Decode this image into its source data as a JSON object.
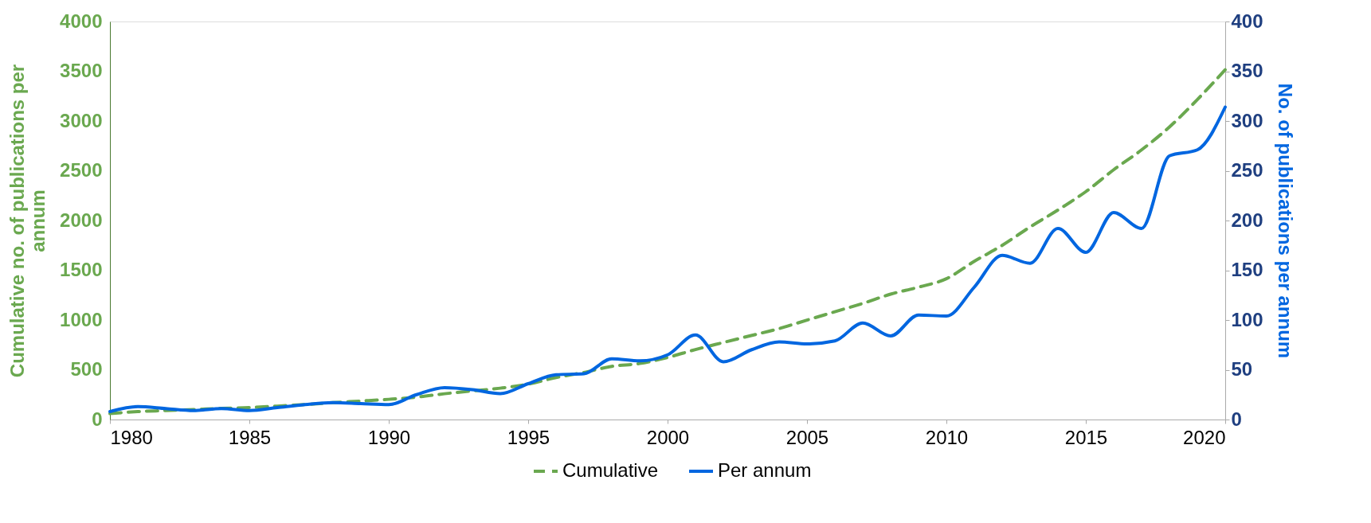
{
  "chart_data": {
    "type": "line",
    "x": [
      1980,
      1981,
      1982,
      1983,
      1984,
      1985,
      1986,
      1987,
      1988,
      1989,
      1990,
      1991,
      1992,
      1993,
      1994,
      1995,
      1996,
      1997,
      1998,
      1999,
      2000,
      2001,
      2002,
      2003,
      2004,
      2005,
      2006,
      2007,
      2008,
      2009,
      2010,
      2011,
      2012,
      2013,
      2014,
      2015,
      2016,
      2017,
      2018,
      2019,
      2020
    ],
    "series": [
      {
        "name": "Cumulative",
        "color": "#6aa84f",
        "line_style": "dashed",
        "axis": "y",
        "values": [
          60,
          80,
          90,
          100,
          112,
          120,
          135,
          150,
          170,
          186,
          203,
          225,
          259,
          287,
          315,
          355,
          422,
          473,
          534,
          563,
          624,
          703,
          774,
          844,
          914,
          999,
          1083,
          1167,
          1260,
          1330,
          1415,
          1590,
          1750,
          1935,
          2105,
          2290,
          2510,
          2710,
          2940,
          3215,
          3515
        ]
      },
      {
        "name": "Per annum",
        "color": "#0066e0",
        "line_style": "solid",
        "axis": "y2",
        "values": [
          8,
          13,
          11,
          9,
          11,
          9,
          12,
          15,
          17,
          16,
          15,
          25,
          32,
          30,
          26,
          36,
          45,
          46,
          61,
          59,
          65,
          85,
          58,
          70,
          78,
          76,
          79,
          97,
          84,
          105,
          104,
          133,
          165,
          157,
          192,
          168,
          208,
          192,
          265,
          271,
          314
        ]
      }
    ],
    "xlim": [
      1980,
      2020
    ],
    "xticks": [
      1980,
      1985,
      1990,
      1995,
      2000,
      2005,
      2010,
      2015,
      2020
    ],
    "ylabel": "Cumulative no. of publications per annum",
    "ylim": [
      0,
      4000
    ],
    "yticks": [
      0,
      500,
      1000,
      1500,
      2000,
      2500,
      3000,
      3500,
      4000
    ],
    "y2label": "No. of publications per annum",
    "y2lim": [
      0,
      400
    ],
    "y2ticks": [
      0,
      50,
      100,
      150,
      200,
      250,
      300,
      350,
      400
    ],
    "legend": "bottom"
  }
}
